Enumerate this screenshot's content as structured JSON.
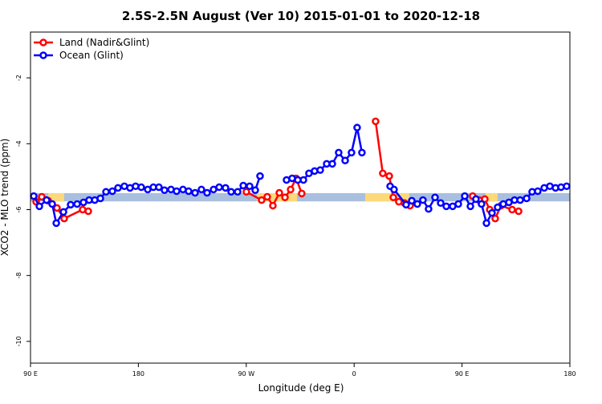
{
  "chart_data": {
    "type": "line",
    "title": "2.5S-2.5N August (Ver 10)   2015-01-01 to 2020-12-18",
    "x_label": "Longitude (deg E)",
    "y_label": "XCO2 - MLO trend (ppm)",
    "xlim": [
      90,
      540
    ],
    "xticks": [
      {
        "value": 90,
        "label": "90 E"
      },
      {
        "value": 180,
        "label": "180"
      },
      {
        "value": 270,
        "label": "90 W"
      },
      {
        "value": 360,
        "label": "0"
      },
      {
        "value": 450,
        "label": "90 E"
      },
      {
        "value": 540,
        "label": "180"
      }
    ],
    "ylim": [
      -10.66,
      -0.61
    ],
    "yticks": [
      -2,
      -4,
      -6,
      -8,
      -10
    ],
    "band_ylim": [
      -5.75,
      -5.5
    ],
    "band_color": "#a9bfdf",
    "land_color": "#fcd97a",
    "land_spans": [
      [
        104.7,
        118.1
      ],
      [
        278.8,
        312.3
      ],
      [
        369.2,
        406.0
      ],
      [
        469.7,
        479.7
      ]
    ],
    "legend": "top-left",
    "series": [
      {
        "name": "Land (Nadir&Glint)",
        "color": "#ff0000",
        "x": [
          94.7,
          99.4,
          104.7,
          112.1,
          118.1,
          133.5,
          138.2,
          null,
          270.1,
          282.8,
          287.5,
          292.2,
          297.6,
          302.3,
          307.0,
          311.6,
          316.3,
          null,
          377.9,
          383.9,
          389.3,
          392.7,
          397.3,
          402.0,
          406.7,
          null,
          458.9,
          464.3,
          469.0,
          473.1,
          477.7,
          482.5,
          491.8,
          497.2
        ],
        "values": [
          -5.76,
          -5.61,
          -5.73,
          -5.95,
          -6.27,
          -6.0,
          -6.05,
          null,
          -5.46,
          -5.71,
          -5.61,
          -5.88,
          -5.49,
          -5.63,
          -5.39,
          -5.05,
          -5.51,
          null,
          -3.32,
          -4.9,
          -4.98,
          -5.63,
          -5.76,
          -5.8,
          -5.88,
          null,
          -5.59,
          -5.71,
          -5.68,
          -6.0,
          -6.27,
          -5.88,
          -6.0,
          -6.05
        ]
      },
      {
        "name": "Ocean (Glint)",
        "color": "#0000ff",
        "x": [
          92.7,
          97.4,
          103.4,
          108.1,
          111.5,
          117.5,
          123.5,
          128.9,
          134.2,
          138.9,
          143.6,
          148.3,
          153.0,
          158.3,
          163.0,
          168.3,
          173.0,
          177.7,
          182.4,
          187.8,
          192.5,
          197.1,
          201.8,
          207.2,
          211.9,
          217.2,
          221.9,
          227.3,
          232.6,
          237.3,
          242.7,
          247.4,
          252.7,
          257.4,
          262.8,
          267.5,
          272.8,
          277.5,
          281.5,
          null,
          303.6,
          308.3,
          313.0,
          317.7,
          322.3,
          327.0,
          331.7,
          337.1,
          341.8,
          347.1,
          352.5,
          357.8,
          362.5,
          366.5,
          null,
          390.0,
          393.3,
          403.4,
          408.1,
          412.7,
          417.4,
          422.1,
          427.5,
          432.2,
          436.9,
          442.2,
          446.9,
          452.3,
          457.0,
          461.6,
          466.3,
          470.4,
          475.0,
          479.7,
          484.4,
          489.1,
          493.8,
          498.5,
          503.9,
          508.5,
          513.2,
          518.6,
          523.3,
          528.0,
          532.6,
          537.3
        ],
        "values": [
          -5.59,
          -5.9,
          -5.71,
          -5.83,
          -6.41,
          -6.07,
          -5.85,
          -5.83,
          -5.78,
          -5.71,
          -5.71,
          -5.66,
          -5.46,
          -5.44,
          -5.34,
          -5.29,
          -5.34,
          -5.29,
          -5.32,
          -5.39,
          -5.32,
          -5.32,
          -5.41,
          -5.39,
          -5.44,
          -5.39,
          -5.44,
          -5.49,
          -5.39,
          -5.49,
          -5.39,
          -5.32,
          -5.34,
          -5.46,
          -5.46,
          -5.27,
          -5.29,
          -5.41,
          -4.98,
          null,
          -5.1,
          -5.05,
          -5.1,
          -5.1,
          -4.9,
          -4.83,
          -4.8,
          -4.61,
          -4.61,
          -4.27,
          -4.51,
          -4.27,
          -3.51,
          -4.27,
          null,
          -5.29,
          -5.39,
          -5.85,
          -5.73,
          -5.83,
          -5.71,
          -5.98,
          -5.63,
          -5.8,
          -5.9,
          -5.9,
          -5.83,
          -5.59,
          -5.9,
          -5.68,
          -5.83,
          -6.41,
          -6.1,
          -5.93,
          -5.83,
          -5.78,
          -5.71,
          -5.71,
          -5.66,
          -5.46,
          -5.44,
          -5.34,
          -5.29,
          -5.34,
          -5.32,
          -5.29
        ]
      }
    ]
  }
}
